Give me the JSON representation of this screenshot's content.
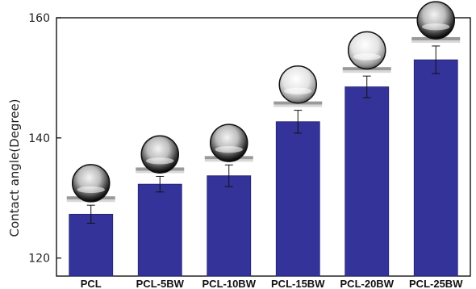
{
  "chart_data": {
    "type": "bar",
    "title": "",
    "xlabel": "",
    "ylabel": "Contact angle(Degree)",
    "categories": [
      "PCL",
      "PCL-5BW",
      "PCL-10BW",
      "PCL-15BW",
      "PCL-20BW",
      "PCL-25BW"
    ],
    "values": [
      127.3,
      132.3,
      133.7,
      142.7,
      148.5,
      153.0
    ],
    "errors": [
      1.5,
      1.3,
      1.8,
      1.9,
      1.8,
      2.3
    ],
    "ylim": [
      117,
      160
    ],
    "yticks": [
      120,
      140,
      160
    ],
    "grid": false,
    "bar_color": "#33339a",
    "droplet_images": [
      "water-droplet",
      "water-droplet",
      "water-droplet",
      "water-droplet",
      "water-droplet",
      "water-droplet"
    ]
  }
}
